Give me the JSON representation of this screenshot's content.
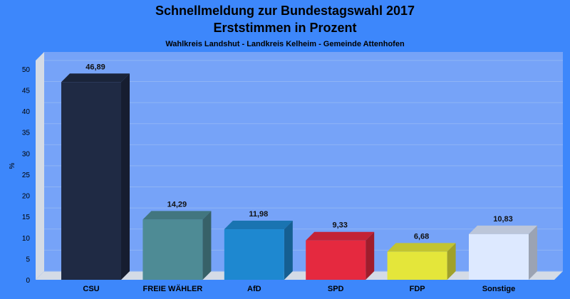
{
  "chart_data": {
    "type": "bar",
    "title": "Schnellmeldung zur Bundestagswahl 2017",
    "subtitle": "Erststimmen in Prozent",
    "subsubtitle": "Wahlkreis Landshut - Landkreis Kelheim - Gemeinde Attenhofen",
    "ylabel": "%",
    "xlabel": "",
    "ylim": [
      0,
      52
    ],
    "yticks": [
      0,
      5,
      10,
      15,
      20,
      25,
      30,
      35,
      40,
      45,
      50
    ],
    "grid": true,
    "categories": [
      "CSU",
      "FREIE WÄHLER",
      "AfD",
      "SPD",
      "FDP",
      "Sonstige"
    ],
    "values": [
      46.89,
      14.29,
      11.98,
      9.33,
      6.68,
      10.83
    ],
    "value_labels": [
      "46,89",
      "14,29",
      "11,98",
      "9,33",
      "6,68",
      "10,83"
    ],
    "colors": [
      "#1f2a44",
      "#4e8b95",
      "#1e88d0",
      "#e5293f",
      "#e4e63a",
      "#dde9ff"
    ]
  }
}
